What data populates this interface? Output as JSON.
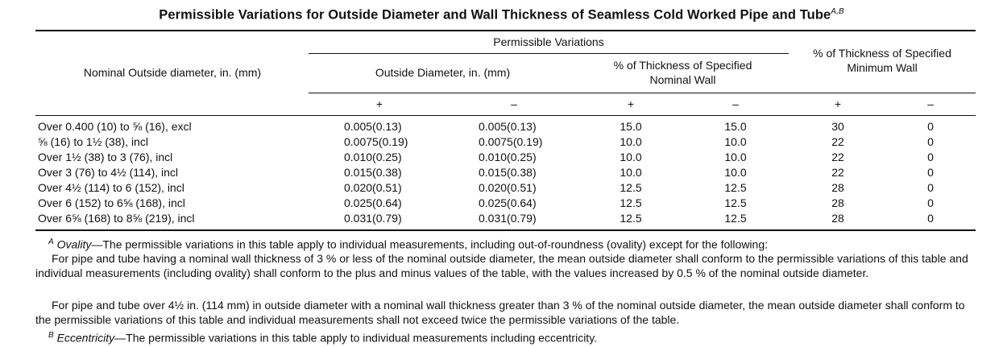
{
  "title": {
    "text": "Permissible Variations for Outside Diameter and Wall Thickness of Seamless Cold Worked Pipe and Tube",
    "footnote_refs": "A,B"
  },
  "header": {
    "nominal_od": "Nominal Outside diameter, in. (mm)",
    "permissible_variations": "Permissible Variations",
    "outside_diameter": "Outside Diameter, in. (mm)",
    "pct_nominal_line1": "% of Thickness of Specified",
    "pct_nominal_line2": "Nominal Wall",
    "pct_min_line1": "% of Thickness of Specified",
    "pct_min_line2": "Minimum Wall",
    "plus": "+",
    "minus": "–"
  },
  "rows": [
    [
      "Over 0.400 (10) to ⅝ (16), excl",
      "0.005(0.13)",
      "0.005(0.13)",
      "15.0",
      "15.0",
      "30",
      "0"
    ],
    [
      "⅝ (16) to 1½ (38), incl",
      "0.0075(0.19)",
      "0.0075(0.19)",
      "10.0",
      "10.0",
      "22",
      "0"
    ],
    [
      "Over 1½ (38) to 3 (76), incl",
      "0.010(0.25)",
      "0.010(0.25)",
      "10.0",
      "10.0",
      "22",
      "0"
    ],
    [
      "Over 3 (76) to 4½ (114), incl",
      "0.015(0.38)",
      "0.015(0.38)",
      "10.0",
      "10.0",
      "22",
      "0"
    ],
    [
      "Over 4½ (114) to 6 (152), incl",
      "0.020(0.51)",
      "0.020(0.51)",
      "12.5",
      "12.5",
      "28",
      "0"
    ],
    [
      "Over 6 (152) to 6⅝ (168), incl",
      "0.025(0.64)",
      "0.025(0.64)",
      "12.5",
      "12.5",
      "28",
      "0"
    ],
    [
      "Over 6⅝ (168) to 8⅝ (219), incl",
      "0.031(0.79)",
      "0.031(0.79)",
      "12.5",
      "12.5",
      "28",
      "0"
    ]
  ],
  "notes": {
    "a_mark": "A",
    "a_term": "Ovality",
    "a_text": "—The permissible variations in this table apply to individual measurements, including out-of-roundness (ovality) except for the following:",
    "p1": "For pipe and tube having a nominal wall thickness of 3 % or less of the nominal outside diameter, the mean outside diameter shall conform to the permissible variations of this table and individual measurements (including ovality) shall conform to the plus and minus values of the table, with the values increased by 0.5 % of the nominal outside diameter.",
    "p2": "For pipe and tube over 4½ in. (114 mm) in outside diameter with a nominal wall thickness greater than 3 % of the nominal outside diameter, the mean outside diameter shall conform to the permissible variations of this table and individual measurements shall not exceed twice the permissible variations of the table.",
    "b_mark": "B",
    "b_term": "Eccentricity",
    "b_text": "—The permissible variations in this table apply to individual measurements including eccentricity."
  }
}
